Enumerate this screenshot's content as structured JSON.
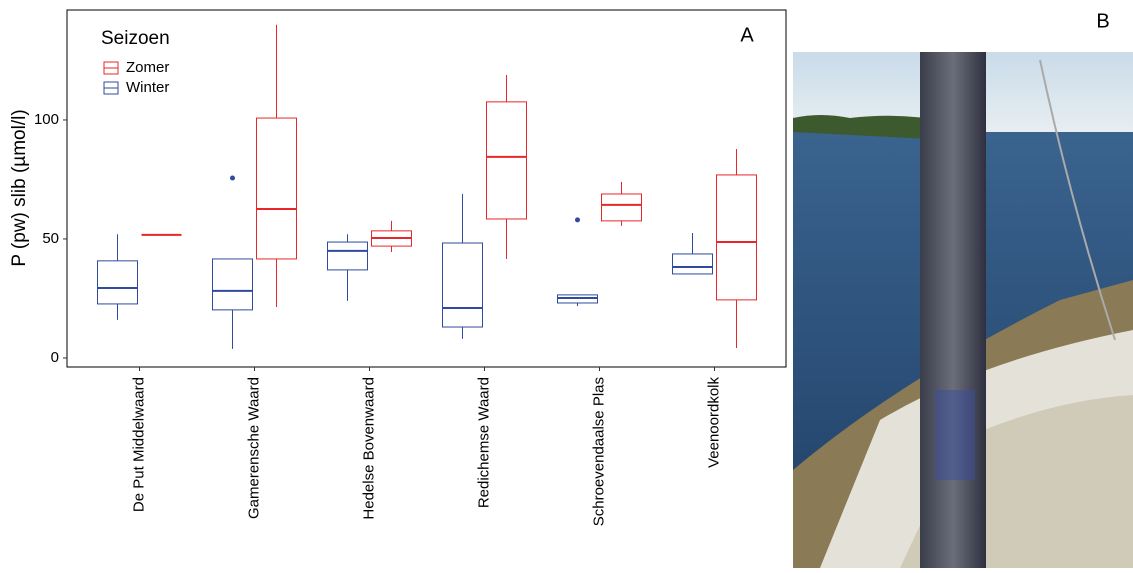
{
  "chart_data": {
    "type": "box",
    "y_label": "P (pw) slib (µmol/l)",
    "panel_label": "A",
    "legend_title": "Seizoen",
    "categories": [
      "De Put Middelwaard",
      "Gamerensche Waard",
      "Hedelse Bovenwaard",
      "Redichemse Waard",
      "Schroevendaalse Plas",
      "Veenoordkolk"
    ],
    "ylim": [
      -3.8,
      146.2
    ],
    "yticks": [
      0,
      50,
      100
    ],
    "grid": false,
    "series": [
      {
        "name": "Zomer",
        "color": "#e8272a",
        "boxes": [
          {
            "min": 51.7,
            "q1": 51.7,
            "median": 51.7,
            "q3": 51.7,
            "max": 51.7,
            "outliers": []
          },
          {
            "min": 21.4,
            "q1": 41.6,
            "median": 62.6,
            "q3": 100.8,
            "max": 140,
            "outliers": []
          },
          {
            "min": 44.5,
            "q1": 47,
            "median": 50.4,
            "q3": 53.4,
            "max": 57.6,
            "outliers": []
          },
          {
            "min": 41.6,
            "q1": 58.4,
            "median": 84.5,
            "q3": 107.6,
            "max": 118.9,
            "outliers": []
          },
          {
            "min": 55.5,
            "q1": 57.6,
            "median": 64.3,
            "q3": 68.9,
            "max": 74,
            "outliers": []
          },
          {
            "min": 4.2,
            "q1": 24.4,
            "median": 48.7,
            "q3": 76.9,
            "max": 87.8,
            "outliers": []
          }
        ]
      },
      {
        "name": "Winter",
        "color": "#2f4a9e",
        "boxes": [
          {
            "min": 16,
            "q1": 22.7,
            "median": 29.4,
            "q3": 40.8,
            "max": 52,
            "outliers": []
          },
          {
            "min": 3.8,
            "q1": 20.2,
            "median": 28.2,
            "q3": 41.6,
            "max": 41.6,
            "outliers": [
              75.6
            ]
          },
          {
            "min": 24,
            "q1": 37,
            "median": 45,
            "q3": 48.7,
            "max": 52,
            "outliers": []
          },
          {
            "min": 8,
            "q1": 13,
            "median": 21,
            "q3": 48.3,
            "max": 68.9,
            "outliers": []
          },
          {
            "min": 21.8,
            "q1": 23.1,
            "median": 25.2,
            "q3": 26.5,
            "max": 26.5,
            "outliers": [
              58
            ]
          },
          {
            "min": 35.3,
            "q1": 35.3,
            "median": 38.2,
            "q3": 43.7,
            "max": 52.5,
            "outliers": []
          }
        ]
      }
    ]
  },
  "photo": {
    "panel_label": "B"
  }
}
